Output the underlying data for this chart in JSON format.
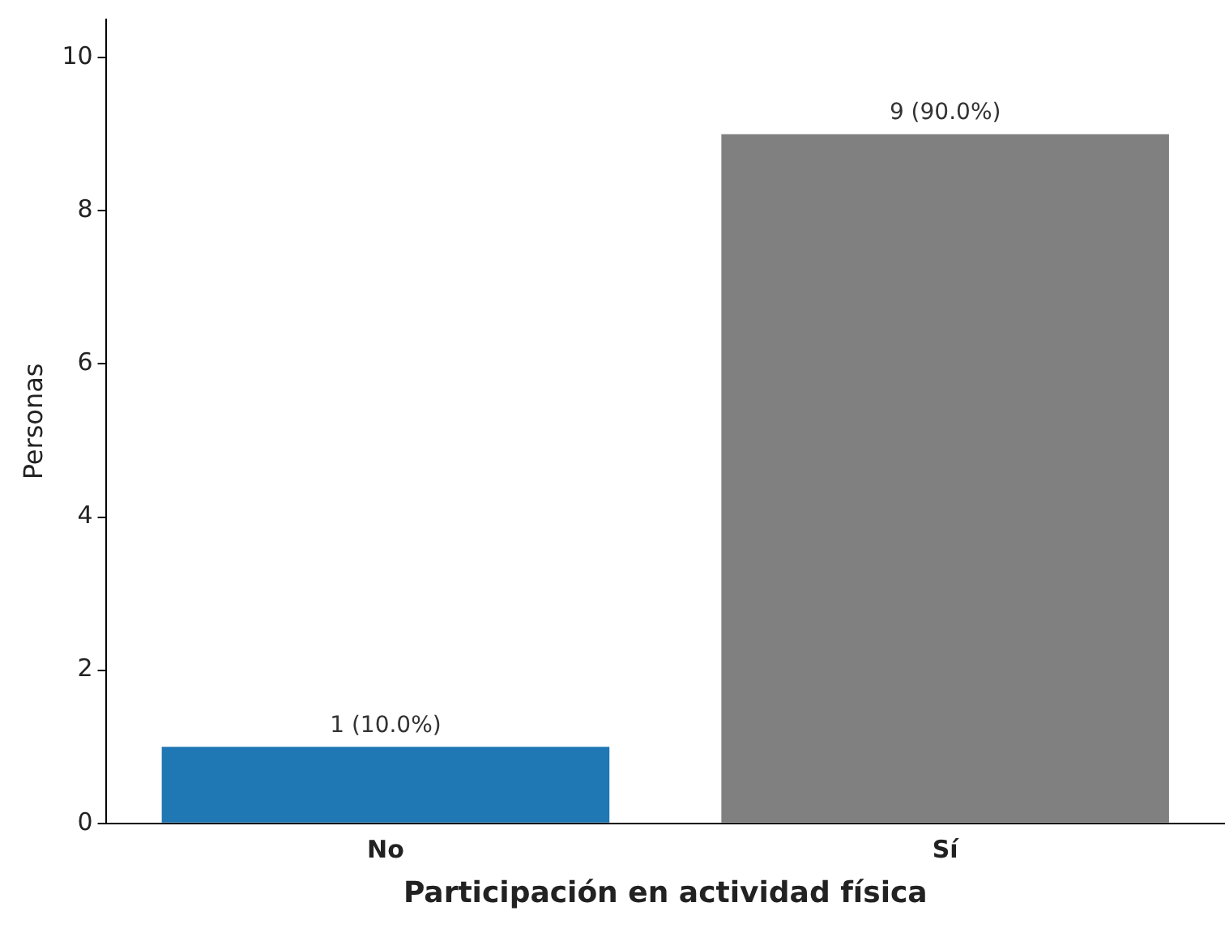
{
  "chart_data": {
    "type": "bar",
    "xlabel": "Participación en actividad física",
    "ylabel": "Personas",
    "categories": [
      "No",
      "Sí"
    ],
    "values": [
      1,
      9
    ],
    "colors": [
      "#1f77b4",
      "#808080"
    ],
    "value_labels": [
      "1 (10.0%)",
      "9 (90.0%)"
    ],
    "ylim": [
      0,
      10.5
    ],
    "yticks": [
      0,
      2,
      4,
      6,
      8,
      10
    ],
    "grid": false,
    "legend": false
  }
}
